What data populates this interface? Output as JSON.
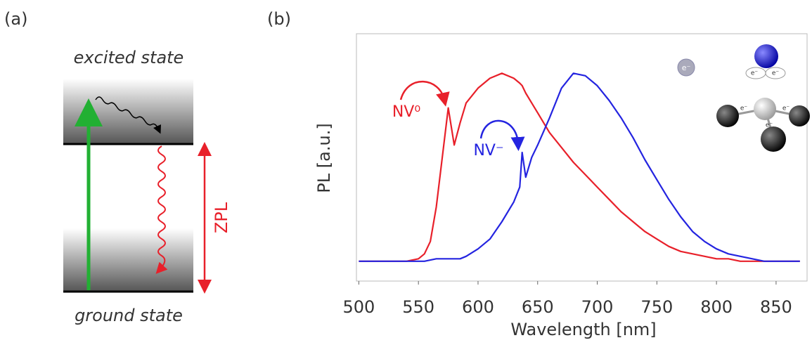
{
  "diagram": {
    "label": "(a)",
    "top_label": "excited state",
    "bottom_label": "ground state",
    "transition_label": "ZPL"
  },
  "molecule": {
    "electron": "e⁻"
  },
  "chart_data": {
    "type": "line",
    "panel_label": "(b)",
    "x_label": "Wavelength [nm]",
    "y_label": "PL [a.u.]",
    "xlim": [
      498,
      876
    ],
    "ylim": [
      0,
      1
    ],
    "xticks": [
      500,
      550,
      600,
      650,
      700,
      750,
      800,
      850
    ],
    "x": [
      500,
      510,
      520,
      530,
      540,
      550,
      555,
      560,
      565,
      570,
      575,
      580,
      585,
      590,
      600,
      610,
      620,
      630,
      635,
      637,
      640,
      645,
      650,
      660,
      670,
      680,
      690,
      700,
      710,
      720,
      730,
      740,
      750,
      760,
      770,
      780,
      790,
      800,
      810,
      820,
      830,
      840,
      850,
      860,
      870
    ],
    "series": [
      {
        "name": "NV⁰",
        "color": "#e8202a",
        "values": [
          0.08,
          0.08,
          0.08,
          0.08,
          0.08,
          0.09,
          0.11,
          0.16,
          0.3,
          0.5,
          0.7,
          0.55,
          0.64,
          0.72,
          0.78,
          0.82,
          0.84,
          0.82,
          0.8,
          0.79,
          0.76,
          0.72,
          0.68,
          0.6,
          0.54,
          0.48,
          0.43,
          0.38,
          0.33,
          0.28,
          0.24,
          0.2,
          0.17,
          0.14,
          0.12,
          0.11,
          0.1,
          0.09,
          0.09,
          0.08,
          0.08,
          0.08,
          0.08,
          0.08,
          0.08
        ]
      },
      {
        "name": "NV⁻",
        "color": "#2424e0",
        "values": [
          0.08,
          0.08,
          0.08,
          0.08,
          0.08,
          0.08,
          0.08,
          0.085,
          0.09,
          0.09,
          0.09,
          0.09,
          0.09,
          0.1,
          0.13,
          0.17,
          0.24,
          0.32,
          0.38,
          0.52,
          0.42,
          0.5,
          0.55,
          0.66,
          0.78,
          0.84,
          0.83,
          0.79,
          0.73,
          0.66,
          0.58,
          0.49,
          0.41,
          0.33,
          0.26,
          0.2,
          0.16,
          0.13,
          0.11,
          0.1,
          0.09,
          0.08,
          0.08,
          0.08,
          0.08
        ]
      }
    ]
  }
}
